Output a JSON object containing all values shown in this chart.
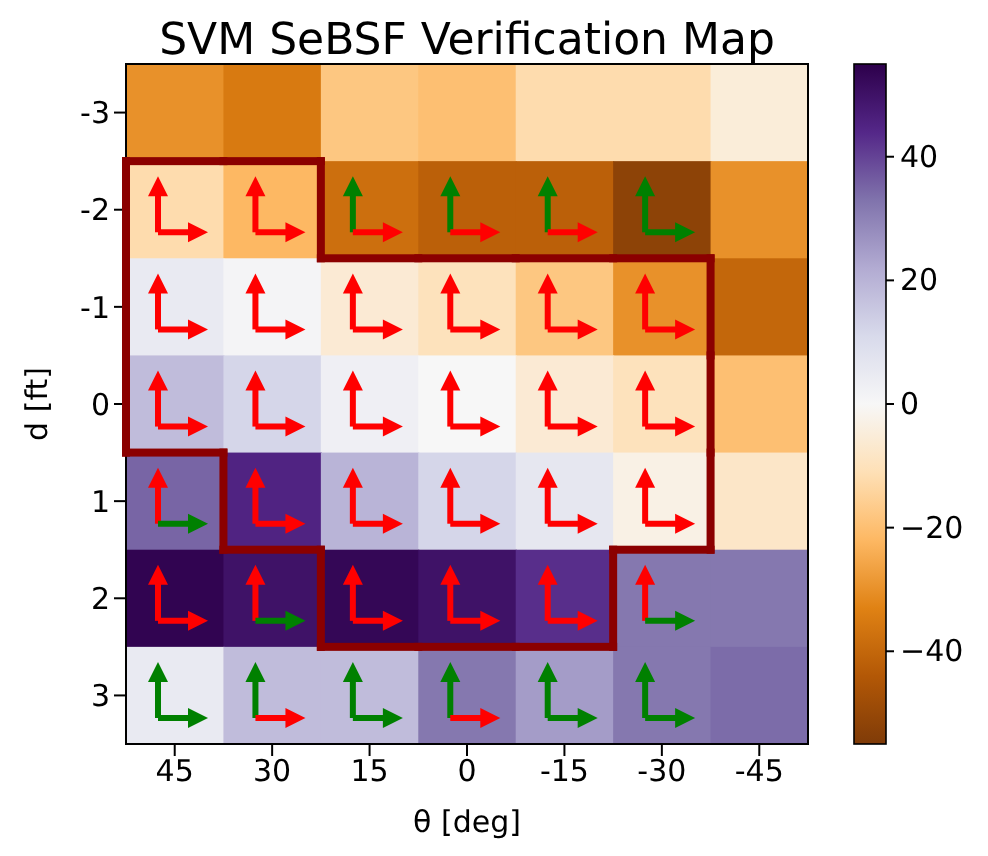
{
  "chart_data": {
    "type": "heatmap",
    "title": "SVM SeBSF Verification Map",
    "xlabel": "θ [deg]",
    "ylabel": "d [ft]",
    "categories": [
      "45",
      "30",
      "15",
      "0",
      "-15",
      "-30",
      "-45"
    ],
    "y_categories": [
      "-3",
      "-2",
      "-1",
      "0",
      "1",
      "2",
      "3"
    ],
    "cells": [
      [
        -30,
        -35,
        -18,
        -20,
        -12,
        -12,
        -5
      ],
      [
        -12,
        -22,
        -38,
        -42,
        -42,
        -52,
        -30
      ],
      [
        5,
        1,
        -6,
        -10,
        -18,
        -30,
        -40
      ],
      [
        18,
        12,
        3,
        0,
        -6,
        -10,
        -20
      ],
      [
        35,
        45,
        20,
        12,
        6,
        -3,
        -8
      ],
      [
        54,
        50,
        53,
        50,
        43,
        32,
        32
      ],
      [
        5,
        18,
        18,
        32,
        25,
        32,
        34
      ]
    ],
    "clim": [
      -55,
      55
    ],
    "cticks": [
      -40,
      -20,
      0,
      20,
      40
    ]
  }
}
